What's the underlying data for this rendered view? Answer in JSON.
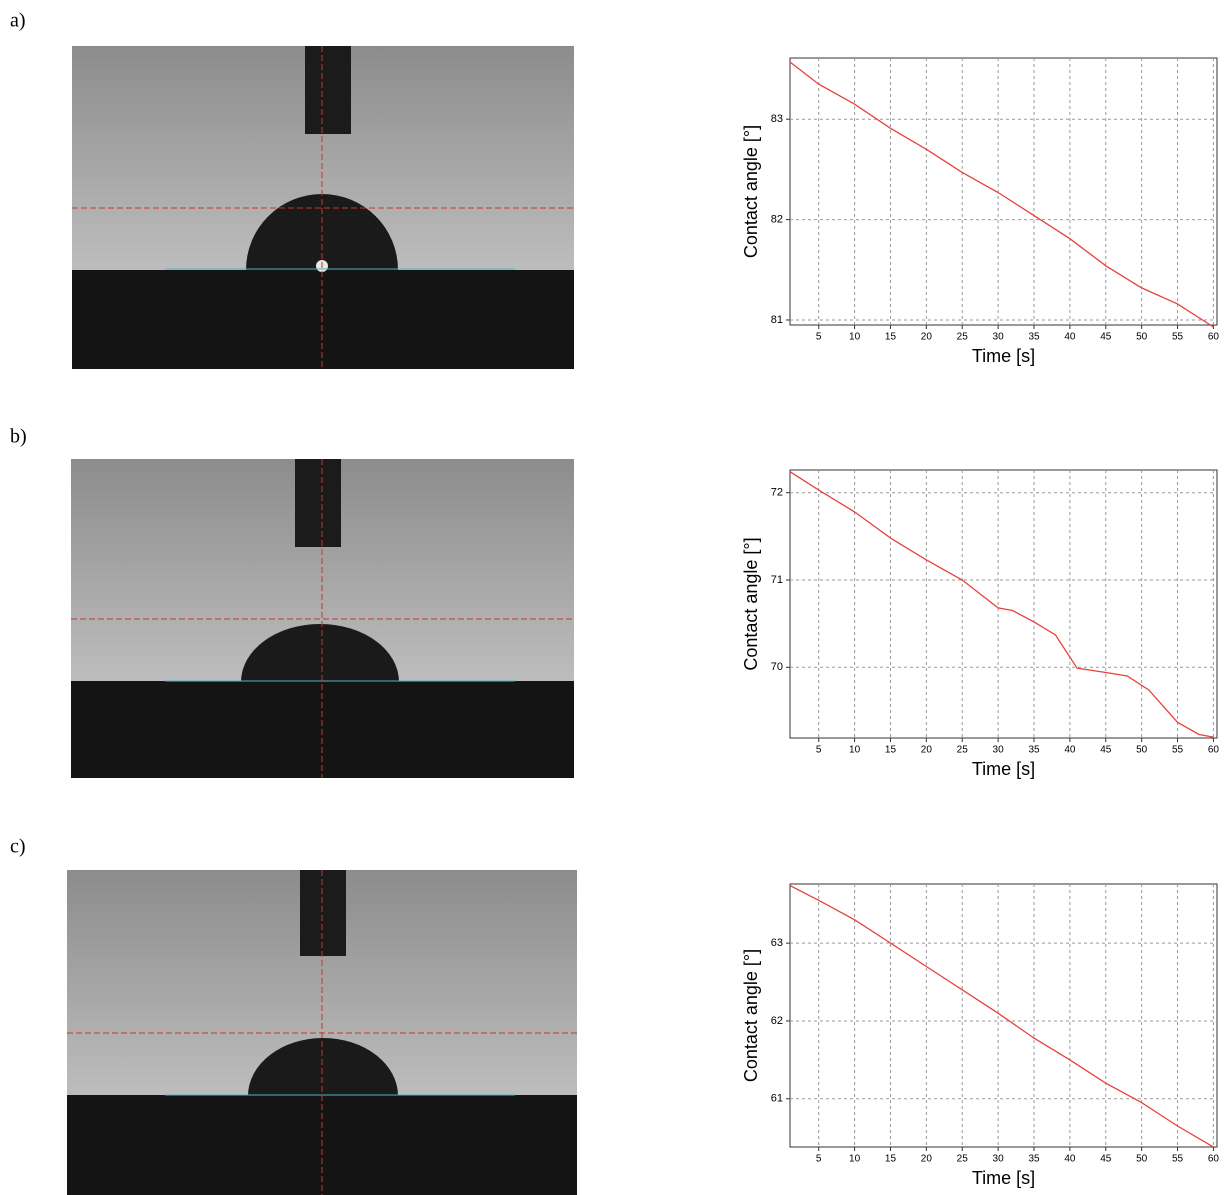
{
  "panel_labels": [
    "a)",
    "b)",
    "c)"
  ],
  "chart_data": [
    {
      "type": "line",
      "x_label": "Time [s]",
      "y_label": "Contact angle [°]",
      "x": [
        1,
        5,
        10,
        15,
        20,
        25,
        30,
        35,
        40,
        45,
        50,
        55,
        60
      ],
      "values": [
        83.57,
        83.35,
        83.15,
        82.91,
        82.7,
        82.47,
        82.27,
        82.04,
        81.81,
        81.54,
        81.32,
        81.16,
        80.93
      ],
      "color": "#e8413c",
      "xlim": [
        1,
        60.5
      ],
      "ylim": [
        80.95,
        83.61
      ],
      "xticks": [
        5,
        10,
        15,
        20,
        25,
        30,
        35,
        40,
        45,
        50,
        55,
        60
      ],
      "yticks": [
        81,
        82,
        83
      ],
      "grid": true
    },
    {
      "type": "line",
      "x_label": "Time [s]",
      "y_label": "Contact angle [°]",
      "x": [
        1,
        5,
        10,
        15,
        20,
        25,
        30,
        32,
        35,
        38,
        41,
        45,
        48,
        51,
        55,
        58,
        60
      ],
      "values": [
        72.24,
        72.03,
        71.78,
        71.48,
        71.23,
        71.0,
        70.68,
        70.65,
        70.52,
        70.37,
        69.99,
        69.94,
        69.9,
        69.74,
        69.37,
        69.23,
        69.2
      ],
      "color": "#e8413c",
      "xlim": [
        1,
        60.5
      ],
      "ylim": [
        69.19,
        72.26
      ],
      "xticks": [
        5,
        10,
        15,
        20,
        25,
        30,
        35,
        40,
        45,
        50,
        55,
        60
      ],
      "yticks": [
        70,
        71,
        72
      ],
      "grid": true
    },
    {
      "type": "line",
      "x_label": "Time [s]",
      "y_label": "Contact angle [°]",
      "x": [
        1,
        5,
        10,
        15,
        20,
        25,
        30,
        35,
        40,
        45,
        50,
        55,
        60
      ],
      "values": [
        63.74,
        63.55,
        63.3,
        63.0,
        62.7,
        62.4,
        62.1,
        61.78,
        61.5,
        61.2,
        60.95,
        60.65,
        60.38
      ],
      "color": "#e8413c",
      "xlim": [
        1,
        60.5
      ],
      "ylim": [
        60.38,
        63.76
      ],
      "xticks": [
        5,
        10,
        15,
        20,
        25,
        30,
        35,
        40,
        45,
        50,
        55,
        60
      ],
      "yticks": [
        61,
        62,
        63
      ],
      "grid": true
    }
  ]
}
